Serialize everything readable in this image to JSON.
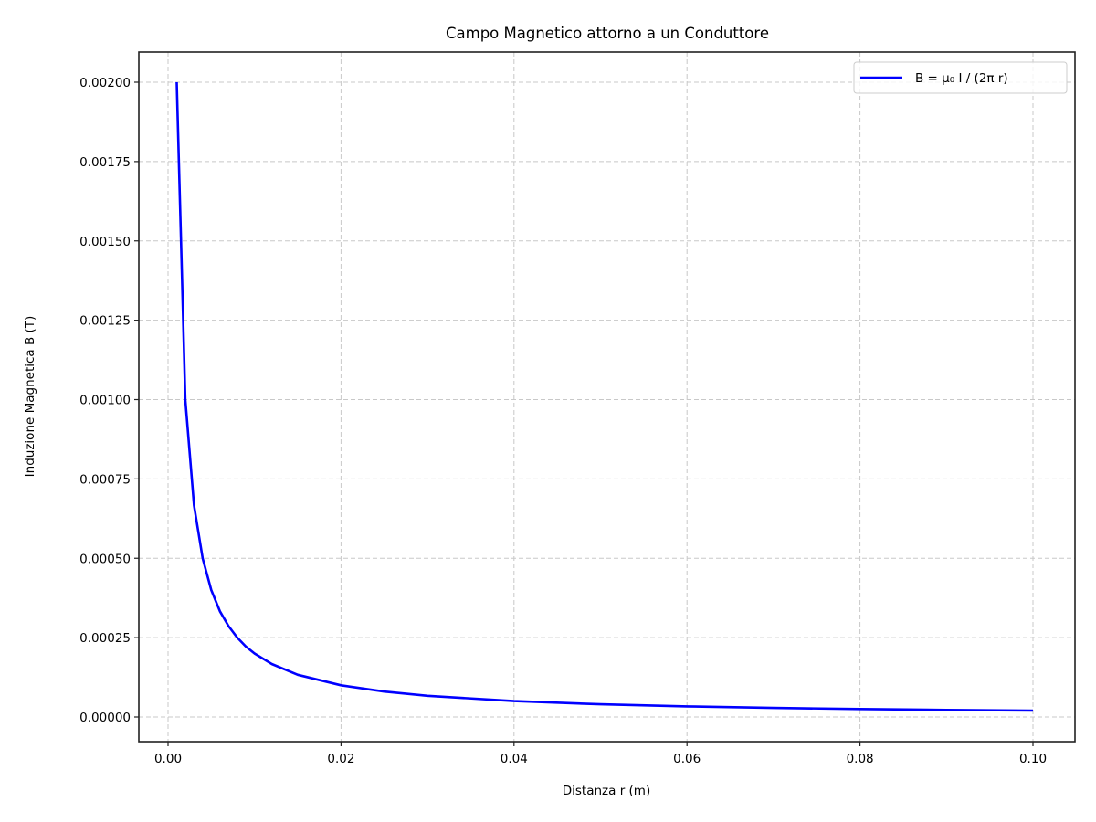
{
  "chart_data": {
    "type": "line",
    "title": "Campo Magnetico attorno a un Conduttore",
    "xlabel": "Distanza r (m)",
    "ylabel": "Induzione Magnetica B (T)",
    "xlim": [
      -0.004,
      0.105
    ],
    "ylim": [
      -0.0001,
      0.0021
    ],
    "grid": true,
    "grid_style": "dashed",
    "legend_position": "upper right",
    "x_ticks": [
      "0.00",
      "0.02",
      "0.04",
      "0.06",
      "0.08",
      "0.10"
    ],
    "x_tick_values": [
      0.0,
      0.02,
      0.04,
      0.06,
      0.08,
      0.1
    ],
    "y_ticks": [
      "0.00000",
      "0.00025",
      "0.00050",
      "0.00075",
      "0.00100",
      "0.00125",
      "0.00150",
      "0.00175",
      "0.00200"
    ],
    "y_tick_values": [
      0.0,
      0.00025,
      0.0005,
      0.00075,
      0.001,
      0.00125,
      0.0015,
      0.00175,
      0.002
    ],
    "series": [
      {
        "name": "B = μ₀ I / (2π r)",
        "color": "#0000ff",
        "x": [
          0.001,
          0.002,
          0.003,
          0.004,
          0.005,
          0.006,
          0.007,
          0.008,
          0.009,
          0.01,
          0.012,
          0.015,
          0.02,
          0.025,
          0.03,
          0.04,
          0.05,
          0.06,
          0.07,
          0.08,
          0.09,
          0.1
        ],
        "values": [
          0.002,
          0.001,
          0.000667,
          0.0005,
          0.0004,
          0.000333,
          0.000286,
          0.00025,
          0.000222,
          0.0002,
          0.000167,
          0.000133,
          0.0001,
          8e-05,
          6.67e-05,
          5e-05,
          4e-05,
          3.33e-05,
          2.86e-05,
          2.5e-05,
          2.22e-05,
          2e-05
        ]
      }
    ]
  },
  "legend": {
    "label": "B = μ₀ I / (2π r)"
  }
}
